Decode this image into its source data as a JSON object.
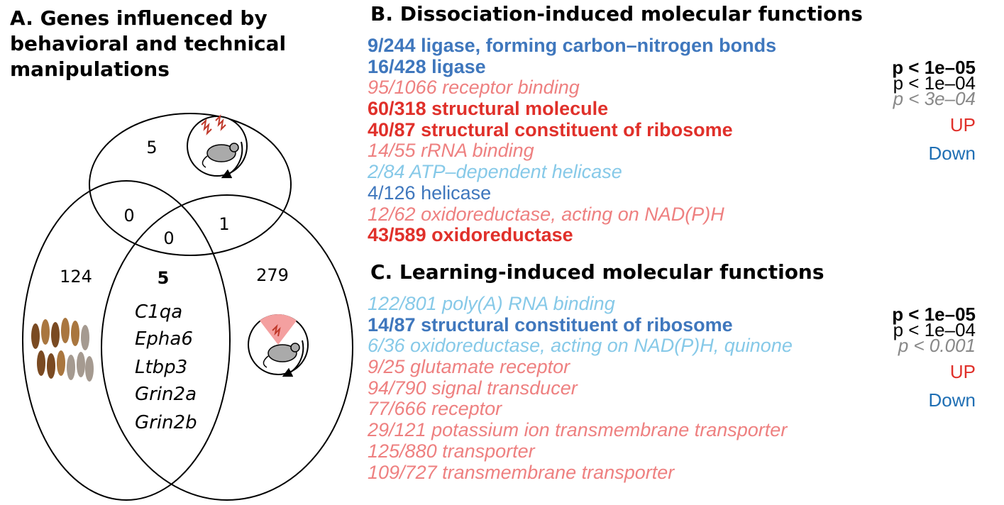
{
  "panel_a": {
    "title_line1": "A. Genes influenced by",
    "title_line2": "behavioral and technical",
    "title_line3": "manipulations",
    "counts": {
      "top_only": "5",
      "top_left": "0",
      "top_right": "1",
      "center": "0",
      "left_only": "124",
      "left_right": "5",
      "right_only": "279"
    },
    "genes": [
      "C1qa",
      "Epha6",
      "Ltbp3",
      "Grin2a",
      "Grin2b"
    ],
    "icons": [
      "mouse-with-neuron-signals-icon",
      "cell-samples-icon",
      "mouse-with-red-sector-icon"
    ],
    "colors": {
      "cells_dark": "#7a4a22",
      "cells_mid": "#a9763f",
      "cells_light": "#a59a90",
      "sector": "#f4a0a0",
      "neuron": "#c0392b"
    }
  },
  "panel_b": {
    "title": "B. Dissociation-induced molecular functions",
    "items": [
      {
        "text": "9/244 ligase, forming carbon–nitrogen bonds",
        "level": 1,
        "color": "#3f77bd"
      },
      {
        "text": "16/428 ligase",
        "level": 1,
        "color": "#3f77bd"
      },
      {
        "text": "95/1066 receptor binding",
        "level": 3,
        "color": "#ee8080"
      },
      {
        "text": "60/318 structural molecule",
        "level": 1,
        "color": "#e0302a"
      },
      {
        "text": "40/87 structural constituent of ribosome",
        "level": 1,
        "color": "#e0302a"
      },
      {
        "text": "14/55 rRNA binding",
        "level": 3,
        "color": "#ee8080"
      },
      {
        "text": "2/84 ATP–dependent helicase",
        "level": 3,
        "color": "#86c9e8"
      },
      {
        "text": "4/126 helicase",
        "level": 2,
        "color": "#3f77bd"
      },
      {
        "text": "12/62 oxidoreductase, acting on NAD(P)H",
        "level": 3,
        "color": "#ee8080"
      },
      {
        "text": "43/589 oxidoreductase",
        "level": 1,
        "color": "#e0302a"
      }
    ],
    "legend": {
      "p1": "p < 1e–05",
      "p2": "p < 1e–04",
      "p3": "p < 3e–04",
      "up": "UP",
      "down": "Down",
      "up_color": "#e0302a",
      "down_color": "#1f6fb4"
    }
  },
  "panel_c": {
    "title": "C. Learning-induced molecular functions",
    "items": [
      {
        "text": "122/801 poly(A) RNA binding",
        "level": 3,
        "color": "#86c9e8"
      },
      {
        "text": "14/87 structural constituent of ribosome",
        "level": 1,
        "color": "#3f77bd"
      },
      {
        "text": "6/36 oxidoreductase, acting on NAD(P)H, quinone",
        "level": 3,
        "color": "#86c9e8"
      },
      {
        "text": "9/25 glutamate receptor",
        "level": 3,
        "color": "#ee8080"
      },
      {
        "text": "94/790 signal transducer",
        "level": 3,
        "color": "#ee8080"
      },
      {
        "text": "77/666 receptor",
        "level": 3,
        "color": "#ee8080"
      },
      {
        "text": "29/121 potassium ion transmembrane transporter",
        "level": 3,
        "color": "#ee8080"
      },
      {
        "text": "125/880 transporter",
        "level": 3,
        "color": "#ee8080"
      },
      {
        "text": "109/727 transmembrane transporter",
        "level": 3,
        "color": "#ee8080"
      }
    ],
    "legend": {
      "p1": "p < 1e–05",
      "p2": "p < 1e–04",
      "p3": "p < 0.001",
      "up": "UP",
      "down": "Down",
      "up_color": "#e0302a",
      "down_color": "#1f6fb4"
    }
  }
}
